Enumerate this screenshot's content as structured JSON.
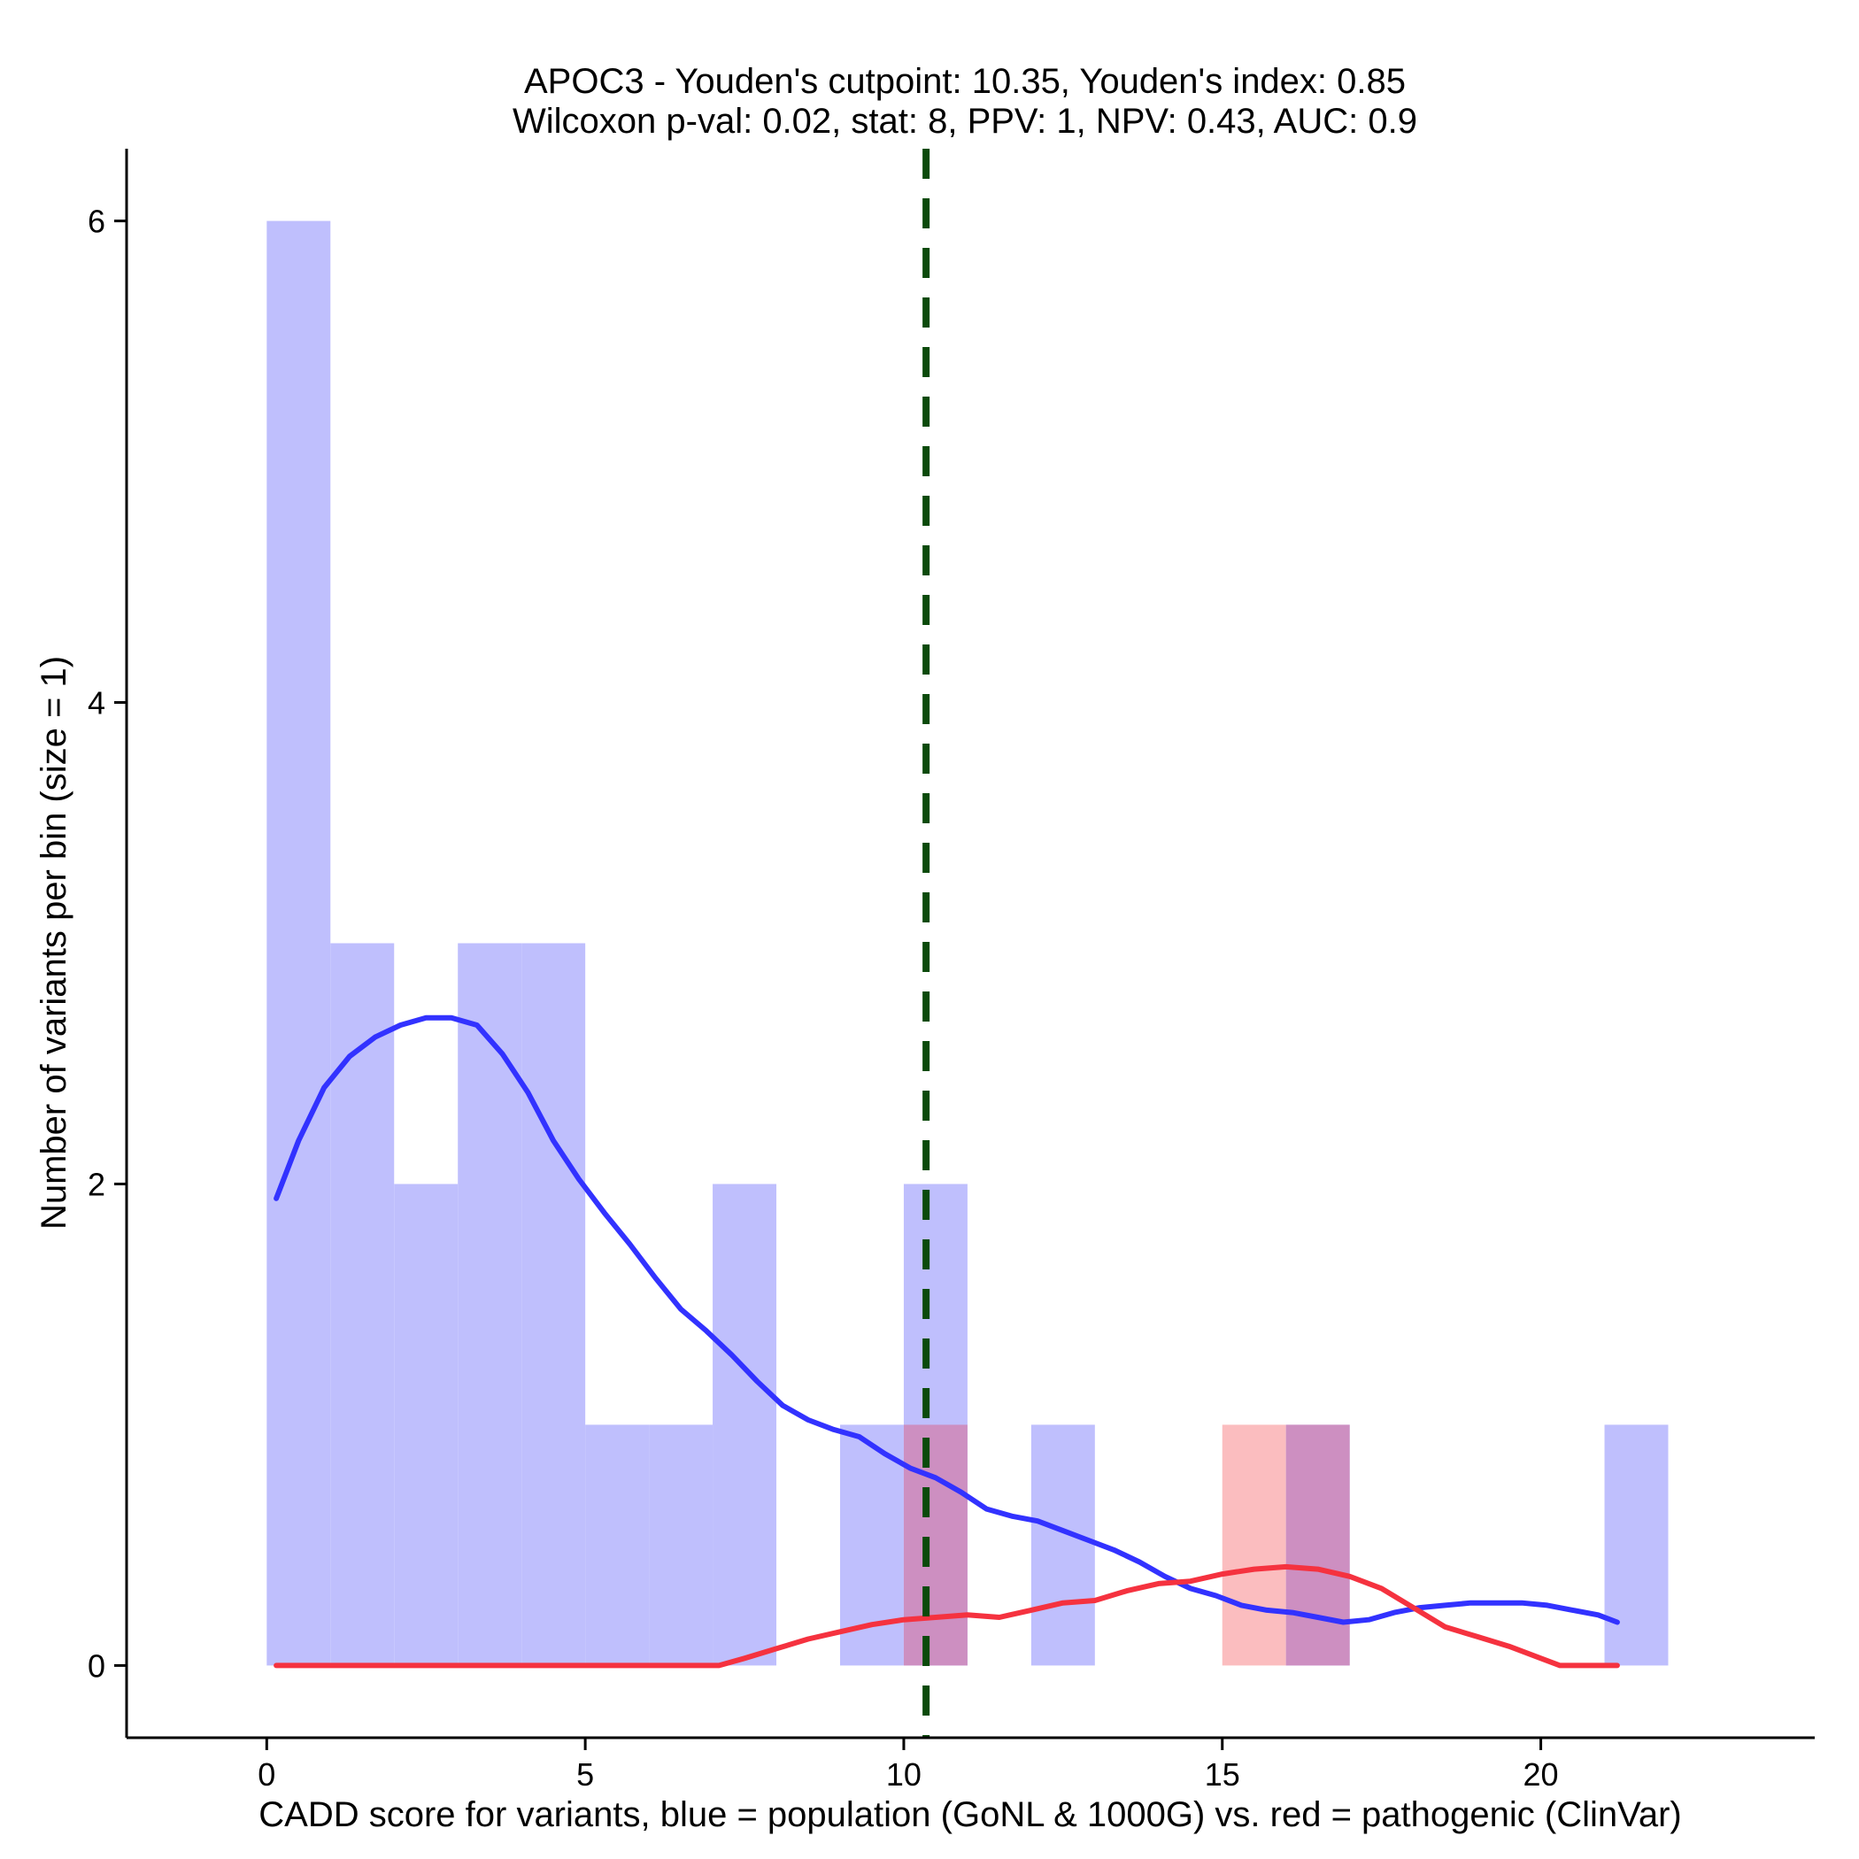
{
  "chart_data": {
    "type": "bar",
    "title_line1": "APOC3 - Youden's cutpoint: 10.35, Youden's index: 0.85",
    "title_line2": "Wilcoxon p-val: 0.02, stat: 8, PPV: 1, NPV: 0.43, AUC: 0.9",
    "xlabel": "CADD score for variants, blue = population (GoNL & 1000G) vs. red = pathogenic (ClinVar)",
    "ylabel": "Number of variants per bin (size = 1)",
    "xlim": [
      -2.2,
      24.3
    ],
    "ylim": [
      -0.3,
      6.3
    ],
    "x_ticks": [
      0,
      5,
      10,
      15,
      20
    ],
    "y_ticks": [
      0,
      2,
      4,
      6
    ],
    "bin_size": 1,
    "cutpoint": 10.35,
    "colors": {
      "population": "#3232ff",
      "pathogenic": "#f5323f",
      "population_fill": "#bfbffd",
      "pathogenic_fill": "#fbbdbf",
      "overlap_fill": "#cd8fc1",
      "cutpoint_line": "#0b4a0b"
    },
    "series": [
      {
        "name": "population (GoNL & 1000G)",
        "bins": [
          {
            "start": 0,
            "end": 1,
            "count": 6
          },
          {
            "start": 1,
            "end": 2,
            "count": 3
          },
          {
            "start": 2,
            "end": 3,
            "count": 2
          },
          {
            "start": 3,
            "end": 4,
            "count": 3
          },
          {
            "start": 4,
            "end": 5,
            "count": 3
          },
          {
            "start": 5,
            "end": 6,
            "count": 1
          },
          {
            "start": 6,
            "end": 7,
            "count": 1
          },
          {
            "start": 7,
            "end": 8,
            "count": 2
          },
          {
            "start": 9,
            "end": 10,
            "count": 1
          },
          {
            "start": 10,
            "end": 11,
            "count": 2
          },
          {
            "start": 12,
            "end": 13,
            "count": 1
          },
          {
            "start": 16,
            "end": 17,
            "count": 1
          },
          {
            "start": 21,
            "end": 22,
            "count": 1
          }
        ],
        "density_curve": [
          [
            0.15,
            1.94
          ],
          [
            0.5,
            2.18
          ],
          [
            0.9,
            2.4
          ],
          [
            1.3,
            2.53
          ],
          [
            1.7,
            2.61
          ],
          [
            2.1,
            2.66
          ],
          [
            2.5,
            2.69
          ],
          [
            2.9,
            2.69
          ],
          [
            3.3,
            2.66
          ],
          [
            3.7,
            2.54
          ],
          [
            4.1,
            2.38
          ],
          [
            4.5,
            2.18
          ],
          [
            4.9,
            2.02
          ],
          [
            5.3,
            1.88
          ],
          [
            5.7,
            1.75
          ],
          [
            6.1,
            1.61
          ],
          [
            6.5,
            1.48
          ],
          [
            6.9,
            1.39
          ],
          [
            7.3,
            1.29
          ],
          [
            7.7,
            1.18
          ],
          [
            8.1,
            1.08
          ],
          [
            8.5,
            1.02
          ],
          [
            8.9,
            0.98
          ],
          [
            9.3,
            0.95
          ],
          [
            9.7,
            0.88
          ],
          [
            10.1,
            0.82
          ],
          [
            10.5,
            0.78
          ],
          [
            10.9,
            0.72
          ],
          [
            11.3,
            0.65
          ],
          [
            11.7,
            0.62
          ],
          [
            12.1,
            0.6
          ],
          [
            12.5,
            0.56
          ],
          [
            12.9,
            0.52
          ],
          [
            13.3,
            0.48
          ],
          [
            13.7,
            0.43
          ],
          [
            14.1,
            0.37
          ],
          [
            14.5,
            0.32
          ],
          [
            14.9,
            0.29
          ],
          [
            15.3,
            0.25
          ],
          [
            15.7,
            0.23
          ],
          [
            16.1,
            0.22
          ],
          [
            16.5,
            0.2
          ],
          [
            16.9,
            0.18
          ],
          [
            17.3,
            0.19
          ],
          [
            17.7,
            0.22
          ],
          [
            18.1,
            0.24
          ],
          [
            18.5,
            0.25
          ],
          [
            18.9,
            0.26
          ],
          [
            19.3,
            0.26
          ],
          [
            19.7,
            0.26
          ],
          [
            20.1,
            0.25
          ],
          [
            20.5,
            0.23
          ],
          [
            20.9,
            0.21
          ],
          [
            21.2,
            0.18
          ]
        ]
      },
      {
        "name": "pathogenic (ClinVar)",
        "bins": [
          {
            "start": 10,
            "end": 11,
            "count": 1
          },
          {
            "start": 15,
            "end": 16,
            "count": 1
          },
          {
            "start": 16,
            "end": 17,
            "count": 1
          }
        ],
        "density_curve": [
          [
            0.15,
            0.0
          ],
          [
            2.0,
            0.0
          ],
          [
            4.0,
            0.0
          ],
          [
            6.0,
            0.0
          ],
          [
            7.1,
            0.0
          ],
          [
            7.5,
            0.03
          ],
          [
            8.0,
            0.07
          ],
          [
            8.5,
            0.11
          ],
          [
            9.0,
            0.14
          ],
          [
            9.5,
            0.17
          ],
          [
            10.0,
            0.19
          ],
          [
            10.5,
            0.2
          ],
          [
            11.0,
            0.21
          ],
          [
            11.5,
            0.2
          ],
          [
            12.0,
            0.23
          ],
          [
            12.5,
            0.26
          ],
          [
            13.0,
            0.27
          ],
          [
            13.5,
            0.31
          ],
          [
            14.0,
            0.34
          ],
          [
            14.5,
            0.35
          ],
          [
            15.0,
            0.38
          ],
          [
            15.5,
            0.4
          ],
          [
            16.0,
            0.41
          ],
          [
            16.5,
            0.4
          ],
          [
            17.0,
            0.37
          ],
          [
            17.5,
            0.32
          ],
          [
            18.0,
            0.24
          ],
          [
            18.5,
            0.16
          ],
          [
            19.0,
            0.12
          ],
          [
            19.5,
            0.08
          ],
          [
            20.0,
            0.03
          ],
          [
            20.3,
            0.0
          ],
          [
            21.2,
            0.0
          ]
        ]
      }
    ]
  }
}
